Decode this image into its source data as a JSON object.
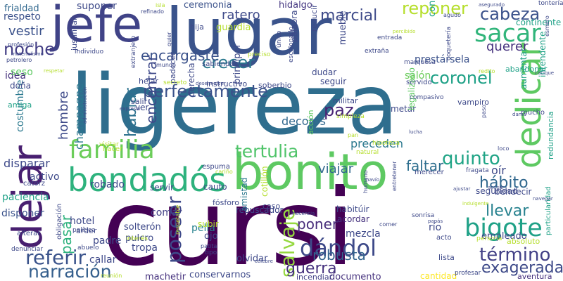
{
  "words": [
    {
      "text": "cursi",
      "color": "#440154"
    },
    {
      "text": "ligereza",
      "color": "#2f6e8e"
    },
    {
      "text": "lugar",
      "color": "#3a538b"
    },
    {
      "text": "jefe",
      "color": "#404387"
    },
    {
      "text": "bonito",
      "color": "#5ec962"
    },
    {
      "text": "bondadós",
      "color": "#2db27d"
    },
    {
      "text": "dejar",
      "color": "#481f70"
    },
    {
      "text": "dedicar",
      "color": "#5ec962"
    },
    {
      "text": "familia",
      "color": "#6ccd5a"
    },
    {
      "text": "perfectamente",
      "color": "#3b528b"
    },
    {
      "text": "sacar",
      "color": "#31b57b"
    },
    {
      "text": "bigote",
      "color": "#1fa187"
    },
    {
      "text": "dándol",
      "color": "#3e4a89"
    },
    {
      "text": "salvaje",
      "color": "#95d840"
    },
    {
      "text": "poseer",
      "color": "#3e4989"
    },
    {
      "text": "referir",
      "color": "#3a538b"
    },
    {
      "text": "narración",
      "color": "#355f8d"
    },
    {
      "text": "término",
      "color": "#424086"
    },
    {
      "text": "exagerada",
      "color": "#3e4a89"
    },
    {
      "text": "guerra",
      "color": "#46327e"
    },
    {
      "text": "tertulia",
      "color": "#50c46a"
    },
    {
      "text": "quinto",
      "color": "#20a486"
    },
    {
      "text": "cabeza",
      "color": "#3b528b"
    },
    {
      "text": "reponer",
      "color": "#b5de2b"
    },
    {
      "text": "crecer",
      "color": "#2a788e"
    },
    {
      "text": "marcial",
      "color": "#3e4a89"
    },
    {
      "text": "noche",
      "color": "#433e85"
    },
    {
      "text": "coronel",
      "color": "#1fa187"
    },
    {
      "text": "hablar",
      "color": "#2c718e"
    },
    {
      "text": "encontrar",
      "color": "#3e4989"
    },
    {
      "text": "llevar",
      "color": "#26818e"
    },
    {
      "text": "paz",
      "color": "#482475"
    },
    {
      "text": "hábito",
      "color": "#31688e"
    },
    {
      "text": "poner",
      "color": "#472c7a"
    },
    {
      "text": "robusta",
      "color": "#33638d"
    },
    {
      "text": "faltar",
      "color": "#2e6e8e"
    },
    {
      "text": "encargaste",
      "color": "#3b528b"
    },
    {
      "text": "querer",
      "color": "#46327e"
    },
    {
      "text": "vestir",
      "color": "#3b528b"
    },
    {
      "text": "hombre",
      "color": "#3e4a89"
    },
    {
      "text": "pasar",
      "color": "#2db27d"
    },
    {
      "text": "disparar",
      "color": "#3e4989"
    },
    {
      "text": "champagne",
      "color": "#2a788e"
    },
    {
      "text": "viajar",
      "color": "#31688e"
    },
    {
      "text": "preceden",
      "color": "#2a788e"
    },
    {
      "text": "decorós",
      "color": "#31688e"
    },
    {
      "text": "ratero",
      "color": "#3e4a89"
    },
    {
      "text": "idea",
      "color": "#46327e"
    },
    {
      "text": "respeto",
      "color": "#3b528b"
    },
    {
      "text": "suponer",
      "color": "#3e4a89"
    },
    {
      "text": "frialdad",
      "color": "#31688e"
    },
    {
      "text": "guardia",
      "color": "#b5de2b"
    },
    {
      "text": "hidalgo",
      "color": "#453781"
    },
    {
      "text": "ceremonia",
      "color": "#3b528b"
    },
    {
      "text": "prestársela",
      "color": "#3b528b"
    },
    {
      "text": "salón",
      "color": "#6ccd5a"
    },
    {
      "text": "costumbre",
      "color": "#2a788e"
    },
    {
      "text": "callar",
      "color": "#3e4989"
    },
    {
      "text": "comar",
      "color": "#424086"
    },
    {
      "text": "pella",
      "color": "#26818e"
    },
    {
      "text": "padre",
      "color": "#3e4989"
    },
    {
      "text": "tropa",
      "color": "#3e4989"
    },
    {
      "text": "hotel",
      "color": "#3e4989"
    },
    {
      "text": "mezcla",
      "color": "#3e4989"
    },
    {
      "text": "río",
      "color": "#3e4989"
    },
    {
      "text": "empleado",
      "color": "#3e4989"
    },
    {
      "text": "oír",
      "color": "#3e4989"
    },
    {
      "text": "activo",
      "color": "#3e4989"
    },
    {
      "text": "robado",
      "color": "#3e4989"
    },
    {
      "text": "conservarnos",
      "color": "#3e4989"
    },
    {
      "text": "documento",
      "color": "#46327e"
    },
    {
      "text": "machetir",
      "color": "#46327e"
    },
    {
      "text": "olvidar",
      "color": "#3e4989"
    },
    {
      "text": "cantidad",
      "color": "#fde725"
    },
    {
      "text": "aventura",
      "color": "#46327e"
    },
    {
      "text": "incendiar",
      "color": "#424086"
    },
    {
      "text": "acordar",
      "color": "#46327e"
    },
    {
      "text": "paciencia",
      "color": "#1fa187"
    },
    {
      "text": "disponer",
      "color": "#3b528b"
    },
    {
      "text": "amistad",
      "color": "#2a788e"
    },
    {
      "text": "cotillón",
      "color": "#b5de2b"
    },
    {
      "text": "pulcro",
      "color": "#3e4989"
    },
    {
      "text": "solterón",
      "color": "#3e4989"
    },
    {
      "text": "ojo",
      "color": "#3e4989"
    },
    {
      "text": "subir",
      "color": "#b5de2b"
    },
    {
      "text": "rebuscador",
      "color": "#3e4989"
    },
    {
      "text": "habitúir",
      "color": "#3e4989"
    },
    {
      "text": "absoluto",
      "color": "#b5de2b"
    },
    {
      "text": "fósforo",
      "color": "#3e4989"
    },
    {
      "text": "caso",
      "color": "#3e4989"
    },
    {
      "text": "cauto",
      "color": "#3e4989"
    },
    {
      "text": "servir",
      "color": "#3e4989"
    },
    {
      "text": "ver",
      "color": "#3e4989"
    },
    {
      "text": "salir",
      "color": "#3e4989"
    },
    {
      "text": "padecer",
      "color": "#3e4989"
    },
    {
      "text": "helar",
      "color": "#3e4989"
    },
    {
      "text": "mueble",
      "color": "#3e4989"
    },
    {
      "text": "principal",
      "color": "#3e4989"
    },
    {
      "text": "dudar",
      "color": "#3e4989"
    },
    {
      "text": "seguir",
      "color": "#3e4989"
    },
    {
      "text": "militar",
      "color": "#3e4989"
    },
    {
      "text": "metar",
      "color": "#3e4989"
    },
    {
      "text": "vampiro",
      "color": "#3e4989"
    },
    {
      "text": "aumentar",
      "color": "#1fa187"
    },
    {
      "text": "bendecir",
      "color": "#3e4989"
    },
    {
      "text": "seguridad",
      "color": "#3e4989"
    },
    {
      "text": "mucho",
      "color": "#3e4989"
    },
    {
      "text": "conocerla",
      "color": "#1fa187"
    },
    {
      "text": "continente",
      "color": "#1fa187"
    },
    {
      "text": "abandonar",
      "color": "#1fa187"
    },
    {
      "text": "servido",
      "color": "#3e4989"
    },
    {
      "text": "soberbio",
      "color": "#3e4989"
    },
    {
      "text": "instructivo",
      "color": "#3e4989"
    },
    {
      "text": "sabiendas",
      "color": "#3e4989"
    },
    {
      "text": "seso",
      "color": "#5ec962"
    },
    {
      "text": "doña",
      "color": "#3e4989"
    },
    {
      "text": "amiga",
      "color": "#1fa187"
    },
    {
      "text": "hija",
      "color": "#3e4989"
    },
    {
      "text": "palabra",
      "color": "#3e4989"
    },
    {
      "text": "reducir",
      "color": "#3e4989"
    },
    {
      "text": "espuma",
      "color": "#3e4989"
    },
    {
      "text": "lista",
      "color": "#3e4989"
    },
    {
      "text": "acto",
      "color": "#3e4989"
    },
    {
      "text": "legalizado",
      "color": "#5ec962"
    },
    {
      "text": "derecha",
      "color": "#3e4989"
    },
    {
      "text": "arder",
      "color": "#3e4989"
    },
    {
      "text": "obligación",
      "color": "#3e4989"
    },
    {
      "text": "alterar",
      "color": "#3e4989"
    },
    {
      "text": "denunciar",
      "color": "#3e4989"
    },
    {
      "text": "abuelo",
      "color": "#3e4989"
    },
    {
      "text": "política",
      "color": "#3e4989"
    },
    {
      "text": "catorz",
      "color": "#3e4989"
    },
    {
      "text": "justificar",
      "color": "#3e4989"
    },
    {
      "text": "petrolero",
      "color": "#3e4989"
    },
    {
      "text": "profesión",
      "color": "#3e4989"
    },
    {
      "text": "merecer",
      "color": "#3e4989"
    },
    {
      "text": "fragata",
      "color": "#3e4989"
    },
    {
      "text": "sonrisa",
      "color": "#3e4989"
    },
    {
      "text": "humano",
      "color": "#3e4989"
    },
    {
      "text": "profesar",
      "color": "#3e4989"
    },
    {
      "text": "hacer",
      "color": "#b5de2b"
    },
    {
      "text": "visitar",
      "color": "#b5de2b"
    },
    {
      "text": "intendente",
      "color": "#1fa187"
    },
    {
      "text": "redundancia",
      "color": "#1fa187"
    },
    {
      "text": "particularidad",
      "color": "#1fa187"
    },
    {
      "text": "individuo",
      "color": "#3e4989"
    },
    {
      "text": "extranjero",
      "color": "#3e4989"
    },
    {
      "text": "escalonado",
      "color": "#3e4989"
    },
    {
      "text": "extraña",
      "color": "#3e4989"
    },
    {
      "text": "entrada",
      "color": "#3e4989"
    },
    {
      "text": "marquesa",
      "color": "#3e4989"
    },
    {
      "text": "coquetería",
      "color": "#3e4989"
    },
    {
      "text": "tontería",
      "color": "#3e4989"
    },
    {
      "text": "esmero",
      "color": "#3e4989"
    },
    {
      "text": "agudo",
      "color": "#3e4989"
    },
    {
      "text": "único",
      "color": "#3e4989"
    },
    {
      "text": "preciso",
      "color": "#b5de2b"
    },
    {
      "text": "isla",
      "color": "#b5de2b"
    },
    {
      "text": "refinado",
      "color": "#3e4989"
    },
    {
      "text": "quier",
      "color": "#3e4989"
    },
    {
      "text": "mundo",
      "color": "#3e4989"
    },
    {
      "text": "materialismo",
      "color": "#3e4989"
    },
    {
      "text": "respetable",
      "color": "#b5de2b"
    },
    {
      "text": "secreto",
      "color": "#b5de2b"
    },
    {
      "text": "entretener",
      "color": "#3e4989"
    },
    {
      "text": "loco",
      "color": "#3e4989"
    },
    {
      "text": "paso",
      "color": "#3e4989"
    },
    {
      "text": "compasivo",
      "color": "#3e4989"
    },
    {
      "text": "simpleza",
      "color": "#b5de2b"
    },
    {
      "text": "natural",
      "color": "#b5de2b"
    },
    {
      "text": "hipoteca",
      "color": "#b5de2b"
    },
    {
      "text": "pan",
      "color": "#b5de2b"
    },
    {
      "text": "acción",
      "color": "#5ec962"
    },
    {
      "text": "persona",
      "color": "#b5de2b"
    },
    {
      "text": "tipo",
      "color": "#3e4989"
    },
    {
      "text": "patita",
      "color": "#3e4989"
    },
    {
      "text": "interés",
      "color": "#b5de2b"
    },
    {
      "text": "reunión",
      "color": "#b5de2b"
    },
    {
      "text": "célebre",
      "color": "#3e4989"
    },
    {
      "text": "cariño",
      "color": "#b5de2b"
    },
    {
      "text": "inocencia",
      "color": "#3e4989"
    },
    {
      "text": "papás",
      "color": "#3e4989"
    },
    {
      "text": "comer",
      "color": "#3e4989"
    },
    {
      "text": "dama",
      "color": "#3e4989"
    },
    {
      "text": "redito",
      "color": "#b5de2b"
    },
    {
      "text": "indulgente",
      "color": "#b5de2b"
    },
    {
      "text": "navío",
      "color": "#3e4989"
    },
    {
      "text": "lucha",
      "color": "#3e4989"
    },
    {
      "text": "expresar",
      "color": "#3e4989"
    },
    {
      "text": "respetar",
      "color": "#b5de2b"
    },
    {
      "text": "administración",
      "color": "#3e4989"
    },
    {
      "text": "asegurado",
      "color": "#3e4989"
    },
    {
      "text": "percibido",
      "color": "#b5de2b"
    },
    {
      "text": "cacique",
      "color": "#3e4989"
    },
    {
      "text": "acusar",
      "color": "#3e4989"
    },
    {
      "text": "ajustar",
      "color": "#3e4989"
    },
    {
      "text": "navegar",
      "color": "#3e4989"
    },
    {
      "text": "desenvolver",
      "color": "#3e4989"
    }
  ]
}
